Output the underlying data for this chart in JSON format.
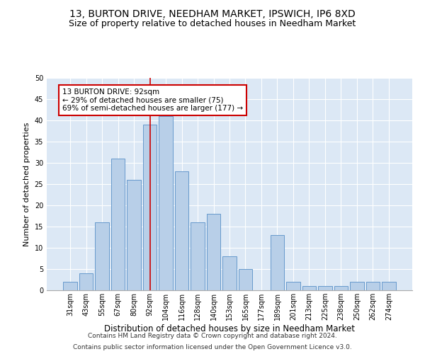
{
  "title1": "13, BURTON DRIVE, NEEDHAM MARKET, IPSWICH, IP6 8XD",
  "title2": "Size of property relative to detached houses in Needham Market",
  "xlabel": "Distribution of detached houses by size in Needham Market",
  "ylabel": "Number of detached properties",
  "footnote1": "Contains HM Land Registry data © Crown copyright and database right 2024.",
  "footnote2": "Contains public sector information licensed under the Open Government Licence v3.0.",
  "categories": [
    "31sqm",
    "43sqm",
    "55sqm",
    "67sqm",
    "80sqm",
    "92sqm",
    "104sqm",
    "116sqm",
    "128sqm",
    "140sqm",
    "153sqm",
    "165sqm",
    "177sqm",
    "189sqm",
    "201sqm",
    "213sqm",
    "225sqm",
    "238sqm",
    "250sqm",
    "262sqm",
    "274sqm"
  ],
  "values": [
    2,
    4,
    16,
    31,
    26,
    39,
    41,
    28,
    16,
    18,
    8,
    5,
    0,
    13,
    2,
    1,
    1,
    1,
    2,
    2,
    2
  ],
  "bar_color": "#b8cfe8",
  "bar_edge_color": "#6699cc",
  "bar_width": 0.85,
  "marker_index": 5,
  "marker_label": "13 BURTON DRIVE: 92sqm",
  "annotation_line1": "← 29% of detached houses are smaller (75)",
  "annotation_line2": "69% of semi-detached houses are larger (177) →",
  "annotation_box_color": "#ffffff",
  "annotation_box_edge_color": "#cc0000",
  "marker_line_color": "#cc0000",
  "ylim": [
    0,
    50
  ],
  "yticks": [
    0,
    5,
    10,
    15,
    20,
    25,
    30,
    35,
    40,
    45,
    50
  ],
  "bg_color": "#dce8f5",
  "grid_color": "#ffffff",
  "title1_fontsize": 10,
  "title2_fontsize": 9,
  "xlabel_fontsize": 8.5,
  "ylabel_fontsize": 8,
  "tick_fontsize": 7,
  "footnote_fontsize": 6.5
}
